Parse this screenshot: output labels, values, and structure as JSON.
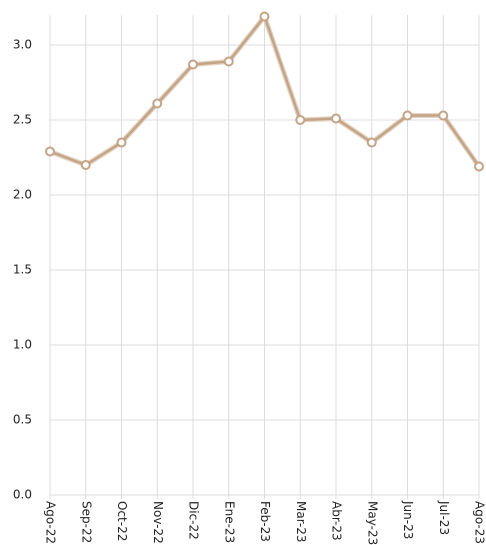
{
  "chart_data": {
    "type": "line",
    "categories": [
      "Ago-22",
      "Sep-22",
      "Oct-22",
      "Nov-22",
      "Dic-22",
      "Ene-23",
      "Feb-23",
      "Mar-23",
      "Abr-23",
      "May-23",
      "Jun-23",
      "Jul-23",
      "Ago-23"
    ],
    "values": [
      2.29,
      2.2,
      2.35,
      2.61,
      2.87,
      2.89,
      3.19,
      2.5,
      2.51,
      2.35,
      2.53,
      2.53,
      2.19
    ],
    "color": "#c4a486",
    "ylim": [
      0,
      3.2
    ],
    "yticks": [
      {
        "value": 0,
        "label": "0.0"
      },
      0.5,
      {
        "value": 1,
        "label": "1.0"
      },
      1.5,
      {
        "value": 2,
        "label": "2.0"
      },
      2.5,
      {
        "value": 3,
        "label": "3.0"
      }
    ],
    "grid": true
  }
}
